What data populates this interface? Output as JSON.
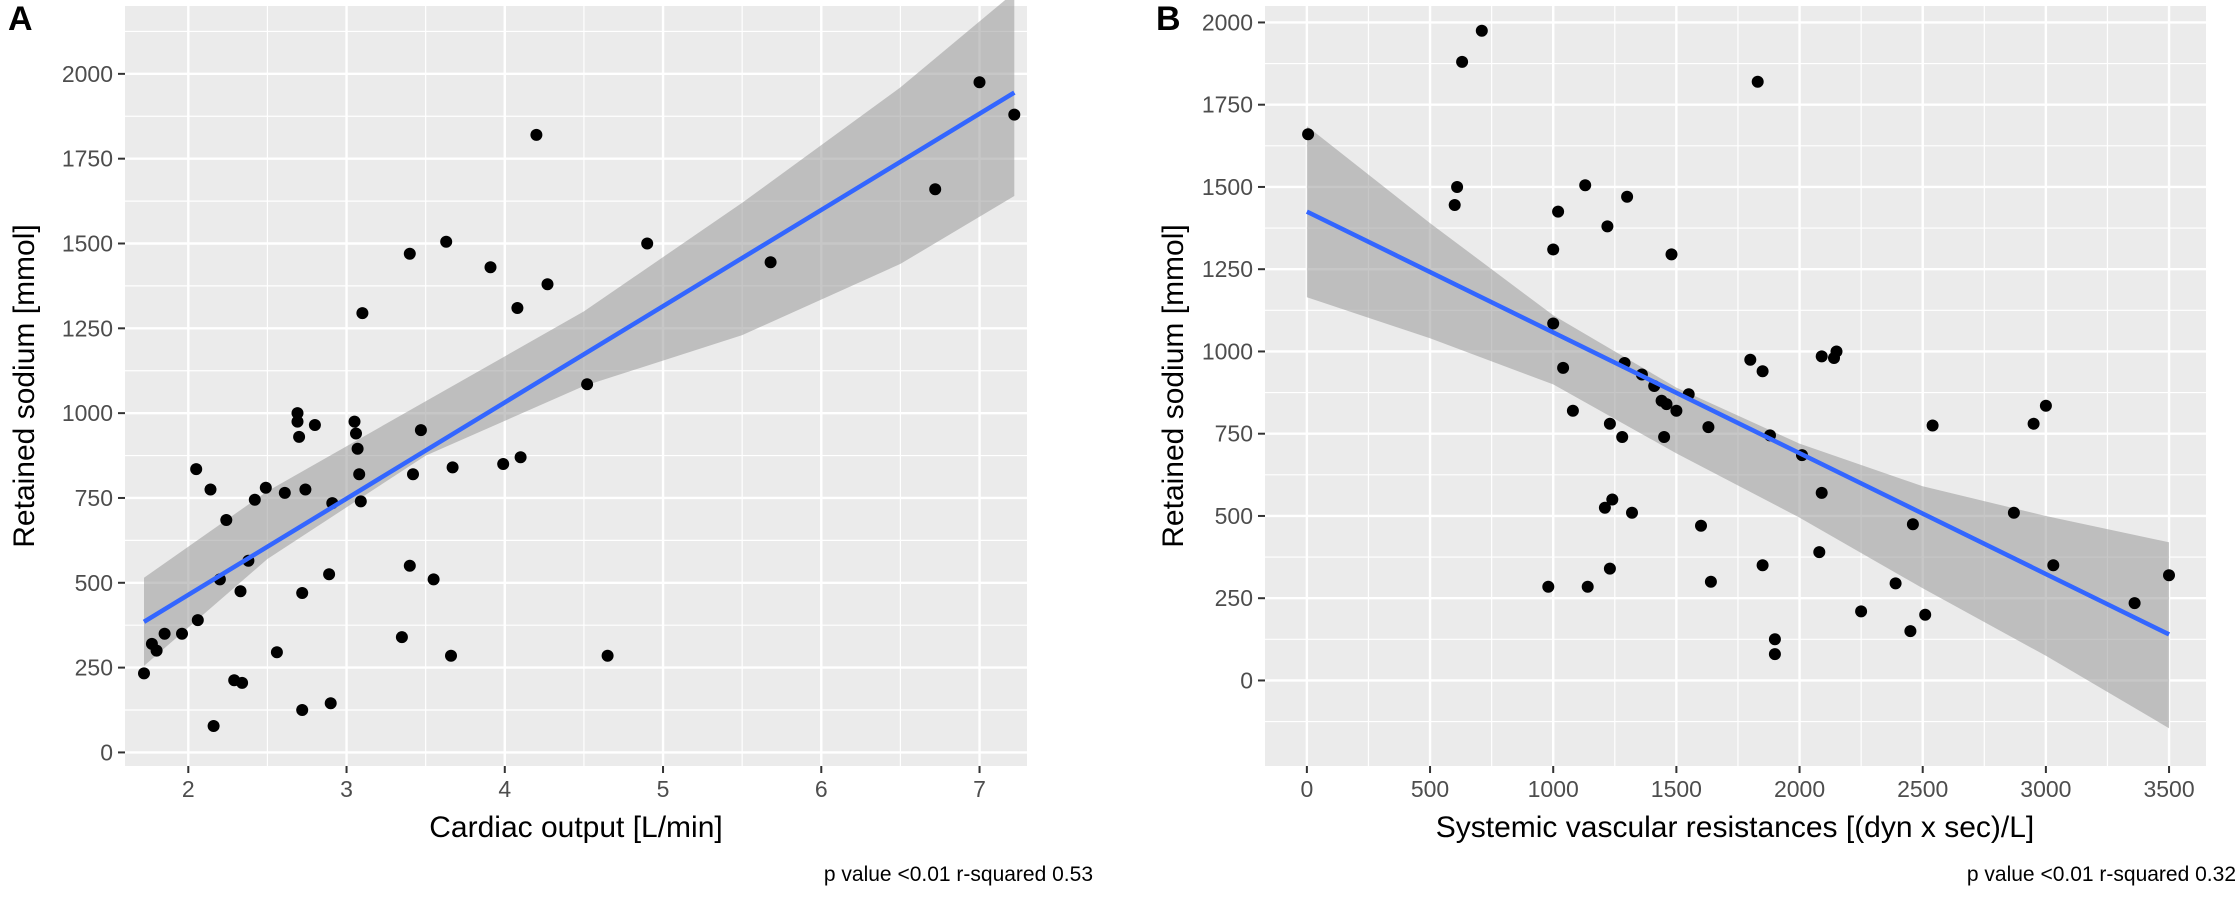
{
  "chart_data": [
    {
      "type": "scatter",
      "panel_label": "A",
      "xlabel": "Cardiac output [L/min]",
      "ylabel": "Retained sodium [mmol]",
      "xlim": [
        1.6,
        7.3
      ],
      "ylim": [
        -40,
        2200
      ],
      "x_ticks": [
        2,
        3,
        4,
        5,
        6,
        7
      ],
      "y_ticks": [
        0,
        250,
        500,
        750,
        1000,
        1250,
        1500,
        1750,
        2000
      ],
      "grid": true,
      "points": [
        [
          1.72,
          233
        ],
        [
          1.77,
          320
        ],
        [
          1.8,
          300
        ],
        [
          1.85,
          350
        ],
        [
          1.96,
          350
        ],
        [
          2.05,
          835
        ],
        [
          2.06,
          390
        ],
        [
          2.14,
          775
        ],
        [
          2.16,
          78
        ],
        [
          2.2,
          510
        ],
        [
          2.24,
          685
        ],
        [
          2.29,
          213
        ],
        [
          2.33,
          475
        ],
        [
          2.34,
          205
        ],
        [
          2.38,
          565
        ],
        [
          2.42,
          745
        ],
        [
          2.49,
          780
        ],
        [
          2.56,
          295
        ],
        [
          2.61,
          765
        ],
        [
          2.69,
          1000
        ],
        [
          2.69,
          975
        ],
        [
          2.7,
          930
        ],
        [
          2.72,
          470
        ],
        [
          2.72,
          125
        ],
        [
          2.74,
          775
        ],
        [
          2.8,
          965
        ],
        [
          2.89,
          525
        ],
        [
          2.9,
          145
        ],
        [
          2.91,
          735
        ],
        [
          3.05,
          975
        ],
        [
          3.06,
          940
        ],
        [
          3.07,
          895
        ],
        [
          3.08,
          820
        ],
        [
          3.09,
          740
        ],
        [
          3.1,
          1295
        ],
        [
          3.35,
          340
        ],
        [
          3.4,
          1470
        ],
        [
          3.4,
          550
        ],
        [
          3.42,
          820
        ],
        [
          3.47,
          950
        ],
        [
          3.55,
          510
        ],
        [
          3.63,
          1505
        ],
        [
          3.66,
          285
        ],
        [
          3.67,
          840
        ],
        [
          3.91,
          1430
        ],
        [
          3.99,
          850
        ],
        [
          4.08,
          1310
        ],
        [
          4.1,
          870
        ],
        [
          4.2,
          1820
        ],
        [
          4.27,
          1380
        ],
        [
          4.52,
          1085
        ],
        [
          4.65,
          285
        ],
        [
          4.9,
          1500
        ],
        [
          5.68,
          1445
        ],
        [
          6.72,
          1660
        ],
        [
          7.0,
          1975
        ],
        [
          7.22,
          1880
        ]
      ],
      "fit": {
        "x0": 1.72,
        "y0": 385,
        "x1": 7.22,
        "y1": 1945
      },
      "band": {
        "x": [
          1.72,
          2.5,
          3.5,
          4.5,
          5.5,
          6.5,
          7.22
        ],
        "upper": [
          515,
          770,
          1035,
          1300,
          1620,
          1960,
          2240
        ],
        "lower": [
          255,
          570,
          875,
          1080,
          1230,
          1440,
          1640
        ]
      },
      "annotation": "p value <0.01 r-squared 0.53",
      "colors": {
        "panel": "#ebebeb",
        "grid": "#ffffff",
        "point": "#000000",
        "line": "#3366ff",
        "band": "#999999"
      }
    },
    {
      "type": "scatter",
      "panel_label": "B",
      "xlabel": "Systemic vascular resistances [(dyn x sec)/L]",
      "ylabel": "Retained sodium [mmol]",
      "xlim": [
        -170,
        3650
      ],
      "ylim": [
        -260,
        2050
      ],
      "x_ticks": [
        0,
        500,
        1000,
        1500,
        2000,
        2500,
        3000,
        3500
      ],
      "y_ticks": [
        0,
        250,
        500,
        750,
        1000,
        1250,
        1500,
        1750,
        2000
      ],
      "grid": true,
      "points": [
        [
          5,
          1660
        ],
        [
          600,
          1445
        ],
        [
          610,
          1500
        ],
        [
          630,
          1880
        ],
        [
          710,
          1975
        ],
        [
          980,
          285
        ],
        [
          1000,
          1310
        ],
        [
          1000,
          1085
        ],
        [
          1020,
          1425
        ],
        [
          1040,
          950
        ],
        [
          1080,
          820
        ],
        [
          1130,
          1505
        ],
        [
          1140,
          285
        ],
        [
          1210,
          525
        ],
        [
          1220,
          1380
        ],
        [
          1230,
          780
        ],
        [
          1230,
          340
        ],
        [
          1240,
          550
        ],
        [
          1280,
          740
        ],
        [
          1290,
          965
        ],
        [
          1300,
          1470
        ],
        [
          1320,
          510
        ],
        [
          1360,
          930
        ],
        [
          1410,
          895
        ],
        [
          1440,
          850
        ],
        [
          1450,
          740
        ],
        [
          1460,
          840
        ],
        [
          1480,
          1295
        ],
        [
          1500,
          820
        ],
        [
          1550,
          870
        ],
        [
          1600,
          470
        ],
        [
          1630,
          770
        ],
        [
          1640,
          300
        ],
        [
          1800,
          975
        ],
        [
          1830,
          1820
        ],
        [
          1850,
          350
        ],
        [
          1850,
          940
        ],
        [
          1880,
          745
        ],
        [
          1900,
          125
        ],
        [
          1900,
          80
        ],
        [
          2010,
          685
        ],
        [
          2080,
          390
        ],
        [
          2090,
          985
        ],
        [
          2090,
          570
        ],
        [
          2140,
          980
        ],
        [
          2150,
          1000
        ],
        [
          2250,
          210
        ],
        [
          2390,
          295
        ],
        [
          2450,
          150
        ],
        [
          2460,
          475
        ],
        [
          2510,
          200
        ],
        [
          2540,
          775
        ],
        [
          2870,
          510
        ],
        [
          2950,
          780
        ],
        [
          3000,
          835
        ],
        [
          3030,
          350
        ],
        [
          3360,
          235
        ],
        [
          3500,
          320
        ]
      ],
      "fit": {
        "x0": 0,
        "y0": 1425,
        "x1": 3500,
        "y1": 140
      },
      "band": {
        "x": [
          0,
          500,
          1000,
          1500,
          2000,
          2500,
          3000,
          3500
        ],
        "upper": [
          1685,
          1390,
          1110,
          890,
          720,
          590,
          500,
          420
        ],
        "lower": [
          1165,
          1040,
          900,
          690,
          495,
          280,
          75,
          -145
        ]
      },
      "annotation": "p value <0.01 r-squared 0.32",
      "colors": {
        "panel": "#ebebeb",
        "grid": "#ffffff",
        "point": "#000000",
        "line": "#3366ff",
        "band": "#999999"
      }
    }
  ]
}
